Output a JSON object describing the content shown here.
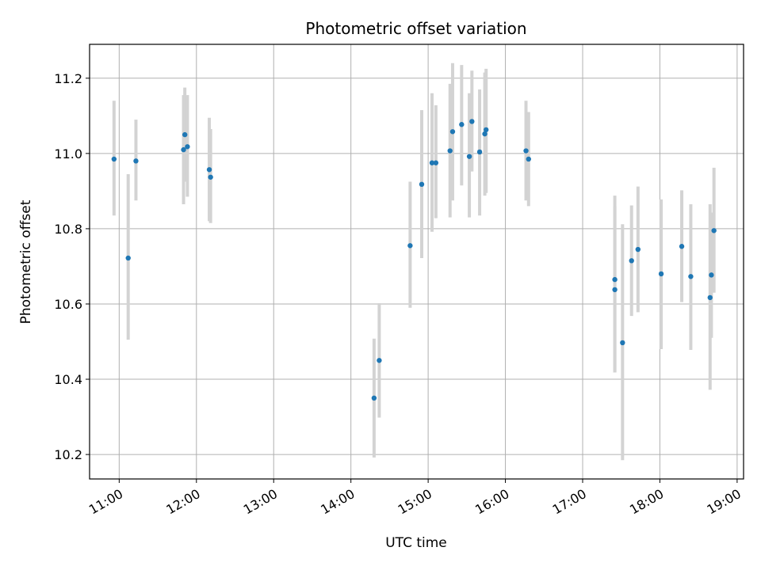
{
  "chart_data": {
    "type": "scatter",
    "title": "Photometric offset variation",
    "xlabel": "UTC time",
    "ylabel": "Photometric offset",
    "x_tick_labels": [
      "11:00",
      "12:00",
      "13:00",
      "14:00",
      "15:00",
      "16:00",
      "17:00",
      "18:00",
      "19:00"
    ],
    "y_tick_labels": [
      "10.2",
      "10.4",
      "10.6",
      "10.8",
      "11.0",
      "11.2"
    ],
    "xlim": [
      "10:37",
      "19:05"
    ],
    "ylim": [
      10.135,
      11.29
    ],
    "y_ticks": [
      10.2,
      10.4,
      10.6,
      10.8,
      11.0,
      11.2
    ],
    "grid": true,
    "point_color": "#1f77b4",
    "errorbar_color": "#d3d3d3",
    "points": [
      {
        "x": "10:56",
        "y": 10.985,
        "lo": 10.835,
        "hi": 11.14
      },
      {
        "x": "11:07",
        "y": 10.722,
        "lo": 10.505,
        "hi": 10.945
      },
      {
        "x": "11:13",
        "y": 10.98,
        "lo": 10.875,
        "hi": 11.09
      },
      {
        "x": "11:50",
        "y": 11.01,
        "lo": 10.865,
        "hi": 11.155
      },
      {
        "x": "11:51",
        "y": 11.05,
        "lo": 10.925,
        "hi": 11.175
      },
      {
        "x": "11:53",
        "y": 11.018,
        "lo": 10.885,
        "hi": 11.155
      },
      {
        "x": "12:10",
        "y": 10.957,
        "lo": 10.82,
        "hi": 11.095
      },
      {
        "x": "12:11",
        "y": 10.937,
        "lo": 10.815,
        "hi": 11.065
      },
      {
        "x": "14:18",
        "y": 10.35,
        "lo": 10.192,
        "hi": 10.508
      },
      {
        "x": "14:22",
        "y": 10.45,
        "lo": 10.298,
        "hi": 10.602
      },
      {
        "x": "14:46",
        "y": 10.755,
        "lo": 10.59,
        "hi": 10.925
      },
      {
        "x": "14:55",
        "y": 10.918,
        "lo": 10.722,
        "hi": 11.115
      },
      {
        "x": "15:03",
        "y": 10.975,
        "lo": 10.792,
        "hi": 11.16
      },
      {
        "x": "15:06",
        "y": 10.975,
        "lo": 10.828,
        "hi": 11.128
      },
      {
        "x": "15:17",
        "y": 11.007,
        "lo": 10.83,
        "hi": 11.185
      },
      {
        "x": "15:19",
        "y": 11.058,
        "lo": 10.875,
        "hi": 11.24
      },
      {
        "x": "15:26",
        "y": 11.077,
        "lo": 10.915,
        "hi": 11.235
      },
      {
        "x": "15:32",
        "y": 10.992,
        "lo": 10.83,
        "hi": 11.16
      },
      {
        "x": "15:34",
        "y": 11.085,
        "lo": 10.952,
        "hi": 11.22
      },
      {
        "x": "15:40",
        "y": 11.004,
        "lo": 10.835,
        "hi": 11.17
      },
      {
        "x": "15:44",
        "y": 11.052,
        "lo": 10.888,
        "hi": 11.215
      },
      {
        "x": "15:45",
        "y": 11.063,
        "lo": 10.895,
        "hi": 11.225
      },
      {
        "x": "16:16",
        "y": 11.007,
        "lo": 10.875,
        "hi": 11.14
      },
      {
        "x": "16:18",
        "y": 10.985,
        "lo": 10.86,
        "hi": 11.11
      },
      {
        "x": "17:25",
        "y": 10.665,
        "lo": 10.418,
        "hi": 10.888
      },
      {
        "x": "17:25",
        "y": 10.638,
        "lo": 10.418,
        "hi": 10.86
      },
      {
        "x": "17:31",
        "y": 10.497,
        "lo": 10.185,
        "hi": 10.812
      },
      {
        "x": "17:38",
        "y": 10.715,
        "lo": 10.568,
        "hi": 10.862
      },
      {
        "x": "17:43",
        "y": 10.745,
        "lo": 10.578,
        "hi": 10.912
      },
      {
        "x": "18:01",
        "y": 10.68,
        "lo": 10.48,
        "hi": 10.878
      },
      {
        "x": "18:17",
        "y": 10.753,
        "lo": 10.605,
        "hi": 10.902
      },
      {
        "x": "18:24",
        "y": 10.673,
        "lo": 10.478,
        "hi": 10.865
      },
      {
        "x": "18:39",
        "y": 10.617,
        "lo": 10.372,
        "hi": 10.865
      },
      {
        "x": "18:40",
        "y": 10.677,
        "lo": 10.51,
        "hi": 10.843
      },
      {
        "x": "18:42",
        "y": 10.795,
        "lo": 10.63,
        "hi": 10.962
      }
    ]
  }
}
